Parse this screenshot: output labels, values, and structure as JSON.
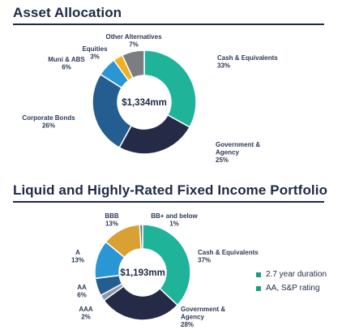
{
  "chart_data": [
    {
      "type": "pie",
      "title": "Asset Allocation",
      "center_label": "$1,334mm",
      "slices": [
        {
          "label": "Cash & Equivalents",
          "pct": "33%",
          "value": 33,
          "color": "#1fb39a"
        },
        {
          "label": "Government & Agency",
          "pct": "25%",
          "value": 25,
          "color": "#252a47"
        },
        {
          "label": "Corporate Bonds",
          "pct": "26%",
          "value": 26,
          "color": "#245d90"
        },
        {
          "label": "Muni & ABS",
          "pct": "6%",
          "value": 6,
          "color": "#2a96d4"
        },
        {
          "label": "Equities",
          "pct": "3%",
          "value": 3,
          "color": "#f2b01e"
        },
        {
          "label": "Other Alternatives",
          "pct": "7%",
          "value": 7,
          "color": "#7b7d80"
        }
      ]
    },
    {
      "type": "pie",
      "title": "Liquid and Highly-Rated Fixed Income Portfolio",
      "center_label": "$1,193mm",
      "slices": [
        {
          "label": "Cash & Equivalents",
          "pct": "37%",
          "value": 37,
          "color": "#1fb39a"
        },
        {
          "label": "Government & Agency",
          "pct": "28%",
          "value": 28,
          "color": "#252a47"
        },
        {
          "label": "AAA",
          "pct": "2%",
          "value": 2,
          "color": "#8a97a8"
        },
        {
          "label": "AA",
          "pct": "6%",
          "value": 6,
          "color": "#245d90"
        },
        {
          "label": "A",
          "pct": "13%",
          "value": 13,
          "color": "#2a96d4"
        },
        {
          "label": "BBB",
          "pct": "13%",
          "value": 13,
          "color": "#d9a033"
        },
        {
          "label": "BB+ and below",
          "pct": "1%",
          "value": 1,
          "color": "#6e6f73"
        }
      ],
      "legend": [
        {
          "text": "2.7 year duration",
          "color": "#1e9b86"
        },
        {
          "text": "AA, S&P rating",
          "color": "#1e9b86"
        }
      ]
    }
  ]
}
